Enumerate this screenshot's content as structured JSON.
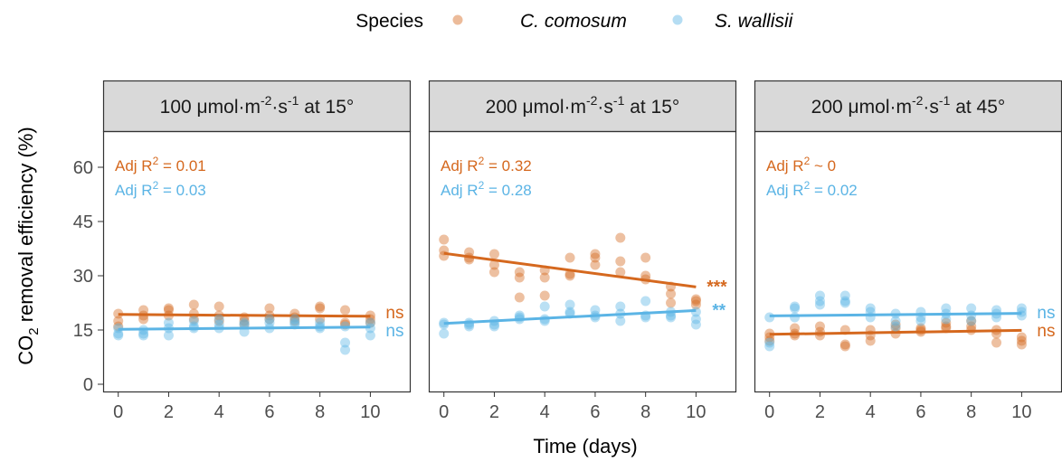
{
  "legend": {
    "title": "Species",
    "entries": [
      "C. comosum",
      "S. wallisii"
    ]
  },
  "colors": {
    "c_comosum": "#D5681E",
    "s_wallisii": "#5BB4E5",
    "strip_fill": "#D9D9D9",
    "axis_text": "#4D4D4D",
    "frame": "#333333"
  },
  "axes": {
    "ylabel_pre": "CO",
    "ylabel_sub": "2",
    "ylabel_post": " removal efficiency (%)",
    "xlabel": "Time (days)"
  },
  "chart_data": {
    "type": "scatter",
    "x_ticks": [
      0,
      2,
      4,
      6,
      8,
      10
    ],
    "y_ticks": [
      0,
      15,
      30,
      45,
      60
    ],
    "xlim": [
      -0.6,
      11.6
    ],
    "ylim": [
      -2,
      70
    ],
    "grid": false,
    "legend_position": "top",
    "panels": [
      {
        "strip": {
          "pre": "100 μmol·m",
          "sup1": "-2",
          "mid": "·s",
          "sup2": "-1",
          "post": " at 15°"
        },
        "r2": [
          {
            "pre": "Adj R",
            "sup": "2",
            "post": " = 0.01"
          },
          {
            "pre": "Adj R",
            "sup": "2",
            "post": " = 0.03"
          }
        ],
        "series": [
          {
            "name": "C. comosum",
            "points": [
              [
                0,
                19.5
              ],
              [
                0,
                17.5
              ],
              [
                0,
                16
              ],
              [
                1,
                20.5
              ],
              [
                1,
                19
              ],
              [
                1,
                18
              ],
              [
                2,
                21
              ],
              [
                2,
                20.5
              ],
              [
                2,
                19
              ],
              [
                3,
                22
              ],
              [
                3,
                19.5
              ],
              [
                3,
                18
              ],
              [
                4,
                21.5
              ],
              [
                4,
                19
              ],
              [
                4,
                17.5
              ],
              [
                5,
                18.5
              ],
              [
                5,
                17.5
              ],
              [
                5,
                16.5
              ],
              [
                6,
                21
              ],
              [
                6,
                19
              ],
              [
                6,
                18
              ],
              [
                7,
                19.5
              ],
              [
                7,
                18.5
              ],
              [
                7,
                17.5
              ],
              [
                8,
                21.5
              ],
              [
                8,
                21
              ],
              [
                8,
                18
              ],
              [
                9,
                20.5
              ],
              [
                9,
                17
              ],
              [
                9,
                16.5
              ],
              [
                10,
                19
              ],
              [
                10,
                18
              ],
              [
                10,
                17
              ]
            ],
            "fit": [
              [
                0,
                19.3
              ],
              [
                10,
                18.8
              ]
            ],
            "sig": "ns"
          },
          {
            "name": "S. wallisii",
            "points": [
              [
                0,
                14
              ],
              [
                0,
                13.5
              ],
              [
                0,
                15.5
              ],
              [
                1,
                15
              ],
              [
                1,
                14
              ],
              [
                1,
                13.5
              ],
              [
                2,
                17
              ],
              [
                2,
                15.5
              ],
              [
                2,
                13.5
              ],
              [
                3,
                17.5
              ],
              [
                3,
                16
              ],
              [
                3,
                15.5
              ],
              [
                4,
                18
              ],
              [
                4,
                16.5
              ],
              [
                4,
                15.5
              ],
              [
                5,
                17
              ],
              [
                5,
                16.5
              ],
              [
                5,
                14.5
              ],
              [
                6,
                18
              ],
              [
                6,
                17
              ],
              [
                6,
                15.5
              ],
              [
                7,
                18
              ],
              [
                7,
                17
              ],
              [
                7,
                16.5
              ],
              [
                8,
                17
              ],
              [
                8,
                16
              ],
              [
                8,
                15.5
              ],
              [
                9,
                16
              ],
              [
                9,
                11.5
              ],
              [
                9,
                9.5
              ],
              [
                10,
                17
              ],
              [
                10,
                15.5
              ],
              [
                10,
                13.5
              ]
            ],
            "fit": [
              [
                0,
                15.2
              ],
              [
                10,
                15.8
              ]
            ],
            "sig": "ns"
          }
        ]
      },
      {
        "strip": {
          "pre": "200 μmol·m",
          "sup1": "-2",
          "mid": "·s",
          "sup2": "-1",
          "post": " at 15°"
        },
        "r2": [
          {
            "pre": "Adj R",
            "sup": "2",
            "post": " = 0.32"
          },
          {
            "pre": "Adj R",
            "sup": "2",
            "post": " = 0.28"
          }
        ],
        "series": [
          {
            "name": "C. comosum",
            "points": [
              [
                0,
                40
              ],
              [
                0,
                37
              ],
              [
                0,
                35.5
              ],
              [
                1,
                36.5
              ],
              [
                1,
                35
              ],
              [
                1,
                34.5
              ],
              [
                2,
                36
              ],
              [
                2,
                33
              ],
              [
                2,
                31
              ],
              [
                3,
                31
              ],
              [
                3,
                29.5
              ],
              [
                3,
                24
              ],
              [
                4,
                31.5
              ],
              [
                4,
                29.5
              ],
              [
                4,
                24.5
              ],
              [
                5,
                35
              ],
              [
                5,
                30.5
              ],
              [
                5,
                30
              ],
              [
                6,
                36
              ],
              [
                6,
                35
              ],
              [
                6,
                33
              ],
              [
                7,
                40.5
              ],
              [
                7,
                34
              ],
              [
                7,
                31
              ],
              [
                8,
                35
              ],
              [
                8,
                30
              ],
              [
                8,
                29
              ],
              [
                9,
                27
              ],
              [
                9,
                25
              ],
              [
                9,
                22.5
              ],
              [
                10,
                23.5
              ],
              [
                10,
                23
              ],
              [
                10,
                22
              ]
            ],
            "fit": [
              [
                0,
                36.2
              ],
              [
                10,
                26.9
              ]
            ],
            "sig": "***"
          },
          {
            "name": "S. wallisii",
            "points": [
              [
                0,
                17
              ],
              [
                0,
                16.5
              ],
              [
                0,
                14
              ],
              [
                1,
                17
              ],
              [
                1,
                16.5
              ],
              [
                1,
                16
              ],
              [
                2,
                17.5
              ],
              [
                2,
                16.5
              ],
              [
                2,
                16
              ],
              [
                3,
                19
              ],
              [
                3,
                18.5
              ],
              [
                3,
                18
              ],
              [
                4,
                21.5
              ],
              [
                4,
                18
              ],
              [
                4,
                17.5
              ],
              [
                5,
                22
              ],
              [
                5,
                20
              ],
              [
                5,
                19.5
              ],
              [
                6,
                20.5
              ],
              [
                6,
                19
              ],
              [
                6,
                18.5
              ],
              [
                7,
                21.5
              ],
              [
                7,
                19.5
              ],
              [
                7,
                17.5
              ],
              [
                8,
                23
              ],
              [
                8,
                19
              ],
              [
                8,
                18.5
              ],
              [
                9,
                20
              ],
              [
                9,
                19
              ],
              [
                9,
                18.5
              ],
              [
                10,
                20
              ],
              [
                10,
                18
              ],
              [
                10,
                16.5
              ]
            ],
            "fit": [
              [
                0,
                16.8
              ],
              [
                10,
                20.4
              ]
            ],
            "sig": "**"
          }
        ]
      },
      {
        "strip": {
          "pre": "200 μmol·m",
          "sup1": "-2",
          "mid": "·s",
          "sup2": "-1",
          "post": " at 45°"
        },
        "r2": [
          {
            "pre": "Adj R",
            "sup": "2",
            "post": " ~ 0"
          },
          {
            "pre": "Adj R",
            "sup": "2",
            "post": " = 0.02"
          }
        ],
        "series": [
          {
            "name": "C. comosum",
            "points": [
              [
                0,
                14
              ],
              [
                0,
                13
              ],
              [
                0,
                12
              ],
              [
                1,
                15.5
              ],
              [
                1,
                14
              ],
              [
                1,
                13.5
              ],
              [
                2,
                16
              ],
              [
                2,
                14.5
              ],
              [
                2,
                13.5
              ],
              [
                3,
                15
              ],
              [
                3,
                11
              ],
              [
                3,
                10.5
              ],
              [
                4,
                15
              ],
              [
                4,
                13.5
              ],
              [
                4,
                12
              ],
              [
                5,
                16.5
              ],
              [
                5,
                15.5
              ],
              [
                5,
                14
              ],
              [
                6,
                15.5
              ],
              [
                6,
                15
              ],
              [
                6,
                14.5
              ],
              [
                7,
                17
              ],
              [
                7,
                16
              ],
              [
                7,
                15.5
              ],
              [
                8,
                17.5
              ],
              [
                8,
                16
              ],
              [
                8,
                15
              ],
              [
                9,
                15
              ],
              [
                9,
                14
              ],
              [
                9,
                11.5
              ],
              [
                10,
                13
              ],
              [
                10,
                12
              ],
              [
                10,
                11
              ]
            ],
            "fit": [
              [
                0,
                13.8
              ],
              [
                10,
                14.9
              ]
            ],
            "sig": "ns"
          },
          {
            "name": "S. wallisii",
            "points": [
              [
                0,
                18.5
              ],
              [
                0,
                11.5
              ],
              [
                0,
                10.5
              ],
              [
                1,
                21.5
              ],
              [
                1,
                21
              ],
              [
                1,
                18.5
              ],
              [
                2,
                24.5
              ],
              [
                2,
                23
              ],
              [
                2,
                22
              ],
              [
                3,
                24.5
              ],
              [
                3,
                23
              ],
              [
                3,
                22.5
              ],
              [
                4,
                21
              ],
              [
                4,
                20
              ],
              [
                4,
                18.5
              ],
              [
                5,
                19.5
              ],
              [
                5,
                17.5
              ],
              [
                5,
                16
              ],
              [
                6,
                20
              ],
              [
                6,
                18.5
              ],
              [
                6,
                17.5
              ],
              [
                7,
                21
              ],
              [
                7,
                19.5
              ],
              [
                7,
                18
              ],
              [
                8,
                21
              ],
              [
                8,
                19
              ],
              [
                8,
                17.5
              ],
              [
                9,
                20.5
              ],
              [
                9,
                19.5
              ],
              [
                9,
                18.5
              ],
              [
                10,
                21
              ],
              [
                10,
                20
              ],
              [
                10,
                19
              ]
            ],
            "fit": [
              [
                0,
                18.9
              ],
              [
                10,
                19.6
              ]
            ],
            "sig": "ns"
          }
        ]
      }
    ]
  }
}
